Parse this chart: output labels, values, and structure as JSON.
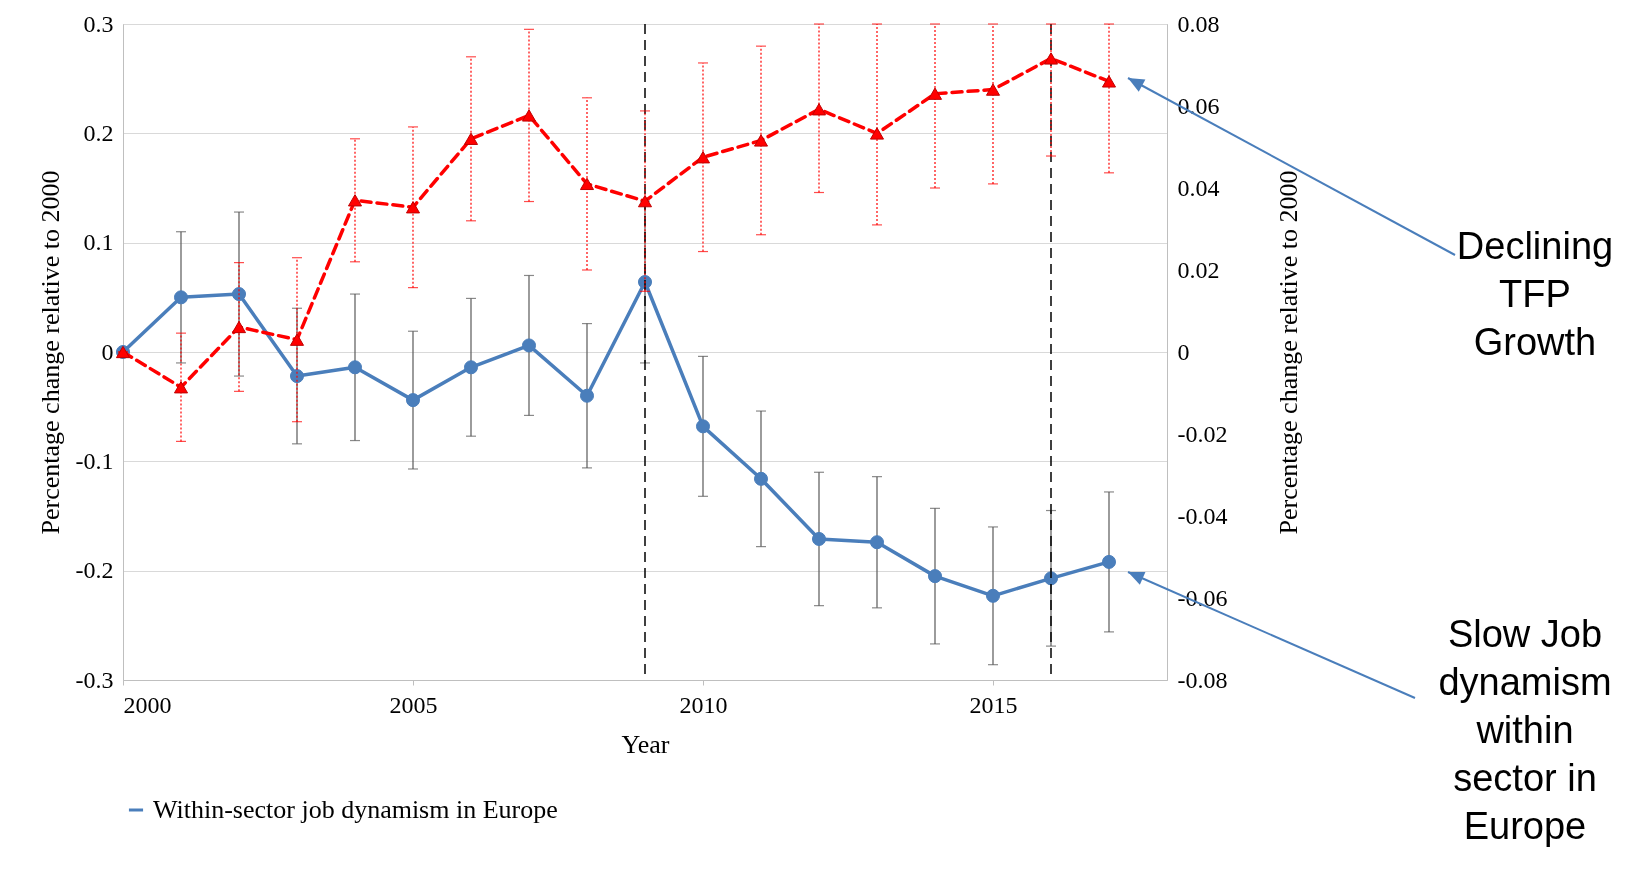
{
  "chart_data": {
    "type": "line",
    "xlabel": "Year",
    "ylabel": "Percentage change relative to 2000",
    "y2label": "Percentage change relative to 2000",
    "x": [
      2000,
      2001,
      2002,
      2003,
      2004,
      2005,
      2006,
      2007,
      2008,
      2009,
      2010,
      2011,
      2012,
      2013,
      2014,
      2015,
      2016,
      2017
    ],
    "series": [
      {
        "name": "Within-sector job dynamism in Europe",
        "color": "#4a7ebb",
        "marker": "circle",
        "line_style": "solid",
        "values": [
          0,
          0.05,
          0.053,
          -0.022,
          -0.014,
          -0.044,
          -0.014,
          0.006,
          -0.04,
          0.064,
          -0.068,
          -0.116,
          -0.171,
          -0.174,
          -0.205,
          -0.223,
          -0.207,
          -0.192
        ],
        "errors": [
          0,
          0.06,
          0.075,
          0.062,
          0.067,
          0.063,
          0.063,
          0.064,
          0.066,
          0.074,
          0.064,
          0.062,
          0.061,
          0.06,
          0.062,
          0.063,
          0.062,
          0.064
        ]
      },
      {
        "color": "#ff0000",
        "marker": "triangle",
        "line_style": "dashed",
        "axis": "y2",
        "values": [
          0,
          -0.0086,
          0.0061,
          0.003,
          0.037,
          0.0353,
          0.052,
          0.0577,
          0.041,
          0.0368,
          0.0475,
          0.0516,
          0.0592,
          0.0533,
          0.063,
          0.064,
          0.0716,
          0.066
        ],
        "errors": [
          0,
          0.0132,
          0.0157,
          0.02,
          0.015,
          0.0196,
          0.02,
          0.021,
          0.021,
          0.022,
          0.023,
          0.023,
          [
            0.0389,
            0.08
          ],
          [
            0.031,
            0.08
          ],
          [
            0.04,
            0.08
          ],
          [
            0.041,
            0.08
          ],
          [
            0.0478,
            0.08
          ],
          [
            0.0437,
            0.08
          ]
        ]
      }
    ],
    "xlim": [
      2000,
      2018
    ],
    "xticks": [
      2000,
      2005,
      2010,
      2015
    ],
    "ylim": [
      -0.3,
      0.3
    ],
    "yticks": [
      -0.3,
      -0.2,
      -0.1,
      0,
      0.1,
      0.2,
      0.3
    ],
    "y2lim": [
      -0.08,
      0.08
    ],
    "y2ticks": [
      -0.08,
      -0.06,
      -0.04,
      -0.02,
      0,
      0.02,
      0.04,
      0.06,
      0.08
    ],
    "ref_lines": [
      {
        "axis": "x",
        "value": 2009,
        "color": "#000000",
        "line_style": "dashed"
      },
      {
        "axis": "x",
        "value": 2016,
        "color": "#000000",
        "line_style": "dashed"
      }
    ],
    "annotations": [
      "Declining TFP Growth",
      "Slow Job dynamism within sector in Europe"
    ],
    "grid": "y",
    "legend": "bottom"
  }
}
